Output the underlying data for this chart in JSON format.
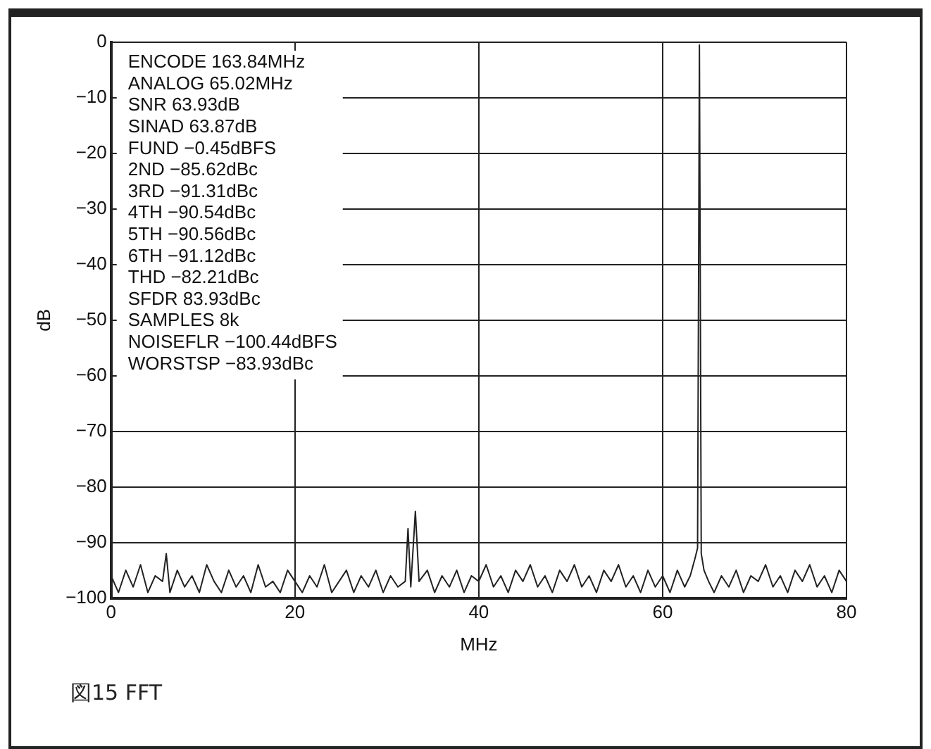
{
  "chart_data": {
    "type": "line",
    "xlabel": "MHz",
    "ylabel": "dB",
    "annotations": [
      "ENCODE 163.84MHz\nANALOG 65.02MHz\nSNR 63.93dB\nSINAD 63.87dB\nFUND −0.45dBFS\n2ND −85.62dBc\n3RD −91.31dBc\n4TH −90.54dBc\n5TH −90.56dBc\n6TH −91.12dBc\nTHD −82.21dBc\nSFDR 83.93dBc\nSAMPLES 8k\nNOISEFLR −100.44dBFS\nWORSTSP −83.93dBc",
      "図15 FFT"
    ],
    "xlim": [
      0,
      80
    ],
    "xticks": [
      0,
      20,
      40,
      60,
      80
    ],
    "ylim": [
      -100,
      0
    ],
    "yticks": [
      0,
      -10,
      -20,
      -30,
      -40,
      -50,
      -60,
      -70,
      -80,
      -90,
      -100
    ],
    "grid": true,
    "marker": "none",
    "series": [
      {
        "color": "#222222",
        "x": [
          0,
          0.8,
          1.6,
          2.4,
          3.2,
          4,
          4.8,
          5.6,
          6,
          6.4,
          7.2,
          8,
          8.8,
          9.6,
          10.4,
          11.2,
          12,
          12.8,
          13.6,
          14.4,
          15.2,
          16,
          16.8,
          17.6,
          18.4,
          19.2,
          20,
          20.8,
          21.6,
          22.4,
          23.2,
          24,
          24.8,
          25.6,
          26.4,
          27.2,
          28,
          28.8,
          29.6,
          30.4,
          31.2,
          32,
          32.3,
          32.6,
          33.1,
          33.5,
          34.4,
          35.2,
          36,
          36.8,
          37.6,
          38.4,
          39.2,
          40,
          40.8,
          41.6,
          42.4,
          43.2,
          44,
          44.8,
          45.6,
          46.4,
          47.2,
          48,
          48.8,
          49.6,
          50.4,
          51.2,
          52,
          52.8,
          53.6,
          54.4,
          55.2,
          56,
          56.8,
          57.6,
          58.4,
          59.2,
          60,
          60.8,
          61.6,
          62.4,
          63,
          63.5,
          63.8,
          64,
          64.2,
          64.5,
          65,
          65.6,
          66.4,
          67.2,
          68,
          68.8,
          69.6,
          70.4,
          71.2,
          72,
          72.8,
          73.6,
          74.4,
          75.2,
          76,
          76.8,
          77.6,
          78.4,
          79.2,
          80
        ],
        "values": [
          -96,
          -99,
          -95,
          -98,
          -94,
          -99,
          -96,
          -97,
          -92,
          -99,
          -95,
          -98,
          -96,
          -99,
          -94,
          -97,
          -99,
          -95,
          -98,
          -96,
          -99,
          -94,
          -98,
          -97,
          -99,
          -95,
          -97,
          -99,
          -96,
          -98,
          -94,
          -99,
          -97,
          -95,
          -99,
          -96,
          -98,
          -95,
          -99,
          -96,
          -98,
          -97,
          -87.5,
          -98,
          -84.4,
          -97,
          -95,
          -99,
          -96,
          -98,
          -95,
          -99,
          -96,
          -97,
          -94,
          -98,
          -96,
          -99,
          -95,
          -97,
          -94,
          -98,
          -96,
          -99,
          -95,
          -97,
          -94,
          -98,
          -96,
          -99,
          -95,
          -97,
          -94,
          -98,
          -96,
          -99,
          -95,
          -98,
          -96,
          -99,
          -95,
          -98,
          -96,
          -93,
          -91,
          -0.5,
          -92,
          -95,
          -97,
          -99,
          -96,
          -98,
          -95,
          -99,
          -96,
          -97,
          -94,
          -98,
          -96,
          -99,
          -95,
          -97,
          -94,
          -98,
          -96,
          -99,
          -95,
          -97
        ]
      }
    ]
  }
}
